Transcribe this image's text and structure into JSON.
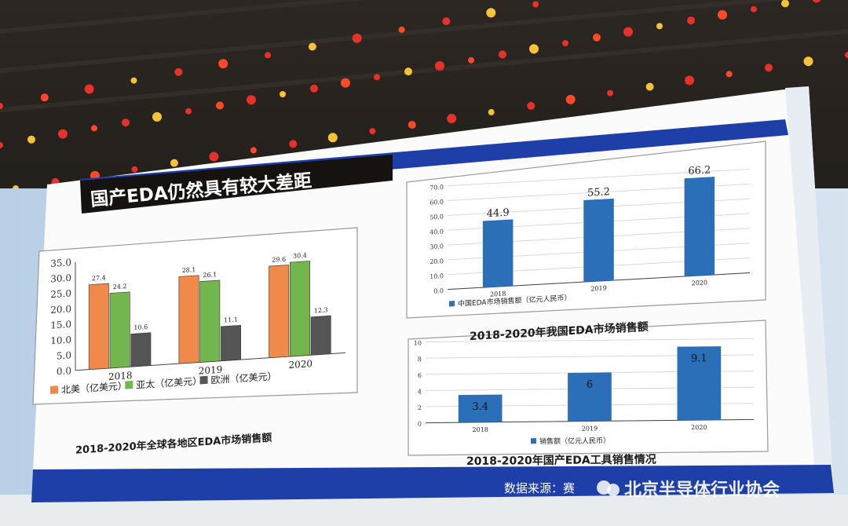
{
  "slide": {
    "title": "国产EDA仍然具有较大差距",
    "source_text": "数据来源：赛",
    "watermark": "北京半导体行业协会",
    "colors": {
      "accent_blue": "#1e3ea8",
      "na_orange": "#f08a4b",
      "ap_green": "#72b64d",
      "eu_gray": "#555555",
      "bar_blue": "#2a6fb8"
    }
  },
  "chart_data": [
    {
      "type": "bar",
      "caption": "2018-2020年全球各地区EDA市场销售额",
      "categories": [
        "2018",
        "2019",
        "2020"
      ],
      "series": [
        {
          "name": "北美（亿美元）",
          "values": [
            27.4,
            28.1,
            29.6
          ]
        },
        {
          "name": "亚太（亿美元）",
          "values": [
            24.2,
            26.1,
            30.4
          ]
        },
        {
          "name": "欧洲（亿美元）",
          "values": [
            10.6,
            11.1,
            12.3
          ]
        }
      ],
      "yticks": [
        "0.0",
        "5.0",
        "10.0",
        "15.0",
        "20.0",
        "25.0",
        "30.0",
        "35.0"
      ],
      "ylim": [
        0,
        35
      ],
      "legend": "bottom",
      "grid": false
    },
    {
      "type": "bar",
      "caption": "2018-2020年我国EDA市场销售额",
      "categories": [
        "2018",
        "2019",
        "2020"
      ],
      "series": [
        {
          "name": "中国EDA市场销售额（亿元人民币）",
          "values": [
            44.9,
            55.2,
            66.2
          ]
        }
      ],
      "yticks": [
        "0.0",
        "10.0",
        "20.0",
        "30.0",
        "40.0",
        "50.0",
        "60.0",
        "70.0"
      ],
      "ylim": [
        0,
        70
      ],
      "legend": "bottom",
      "grid": true
    },
    {
      "type": "bar",
      "caption": "2018-2020年国产EDA工具销售情况",
      "categories": [
        "2018",
        "2019",
        "2020"
      ],
      "series": [
        {
          "name": "销售额（亿元人民币）",
          "values": [
            3.4,
            6,
            9.1
          ]
        }
      ],
      "yticks": [
        "0",
        "2",
        "4",
        "6",
        "8",
        "10"
      ],
      "ylim": [
        0,
        10
      ],
      "legend": "bottom",
      "grid": true
    }
  ]
}
